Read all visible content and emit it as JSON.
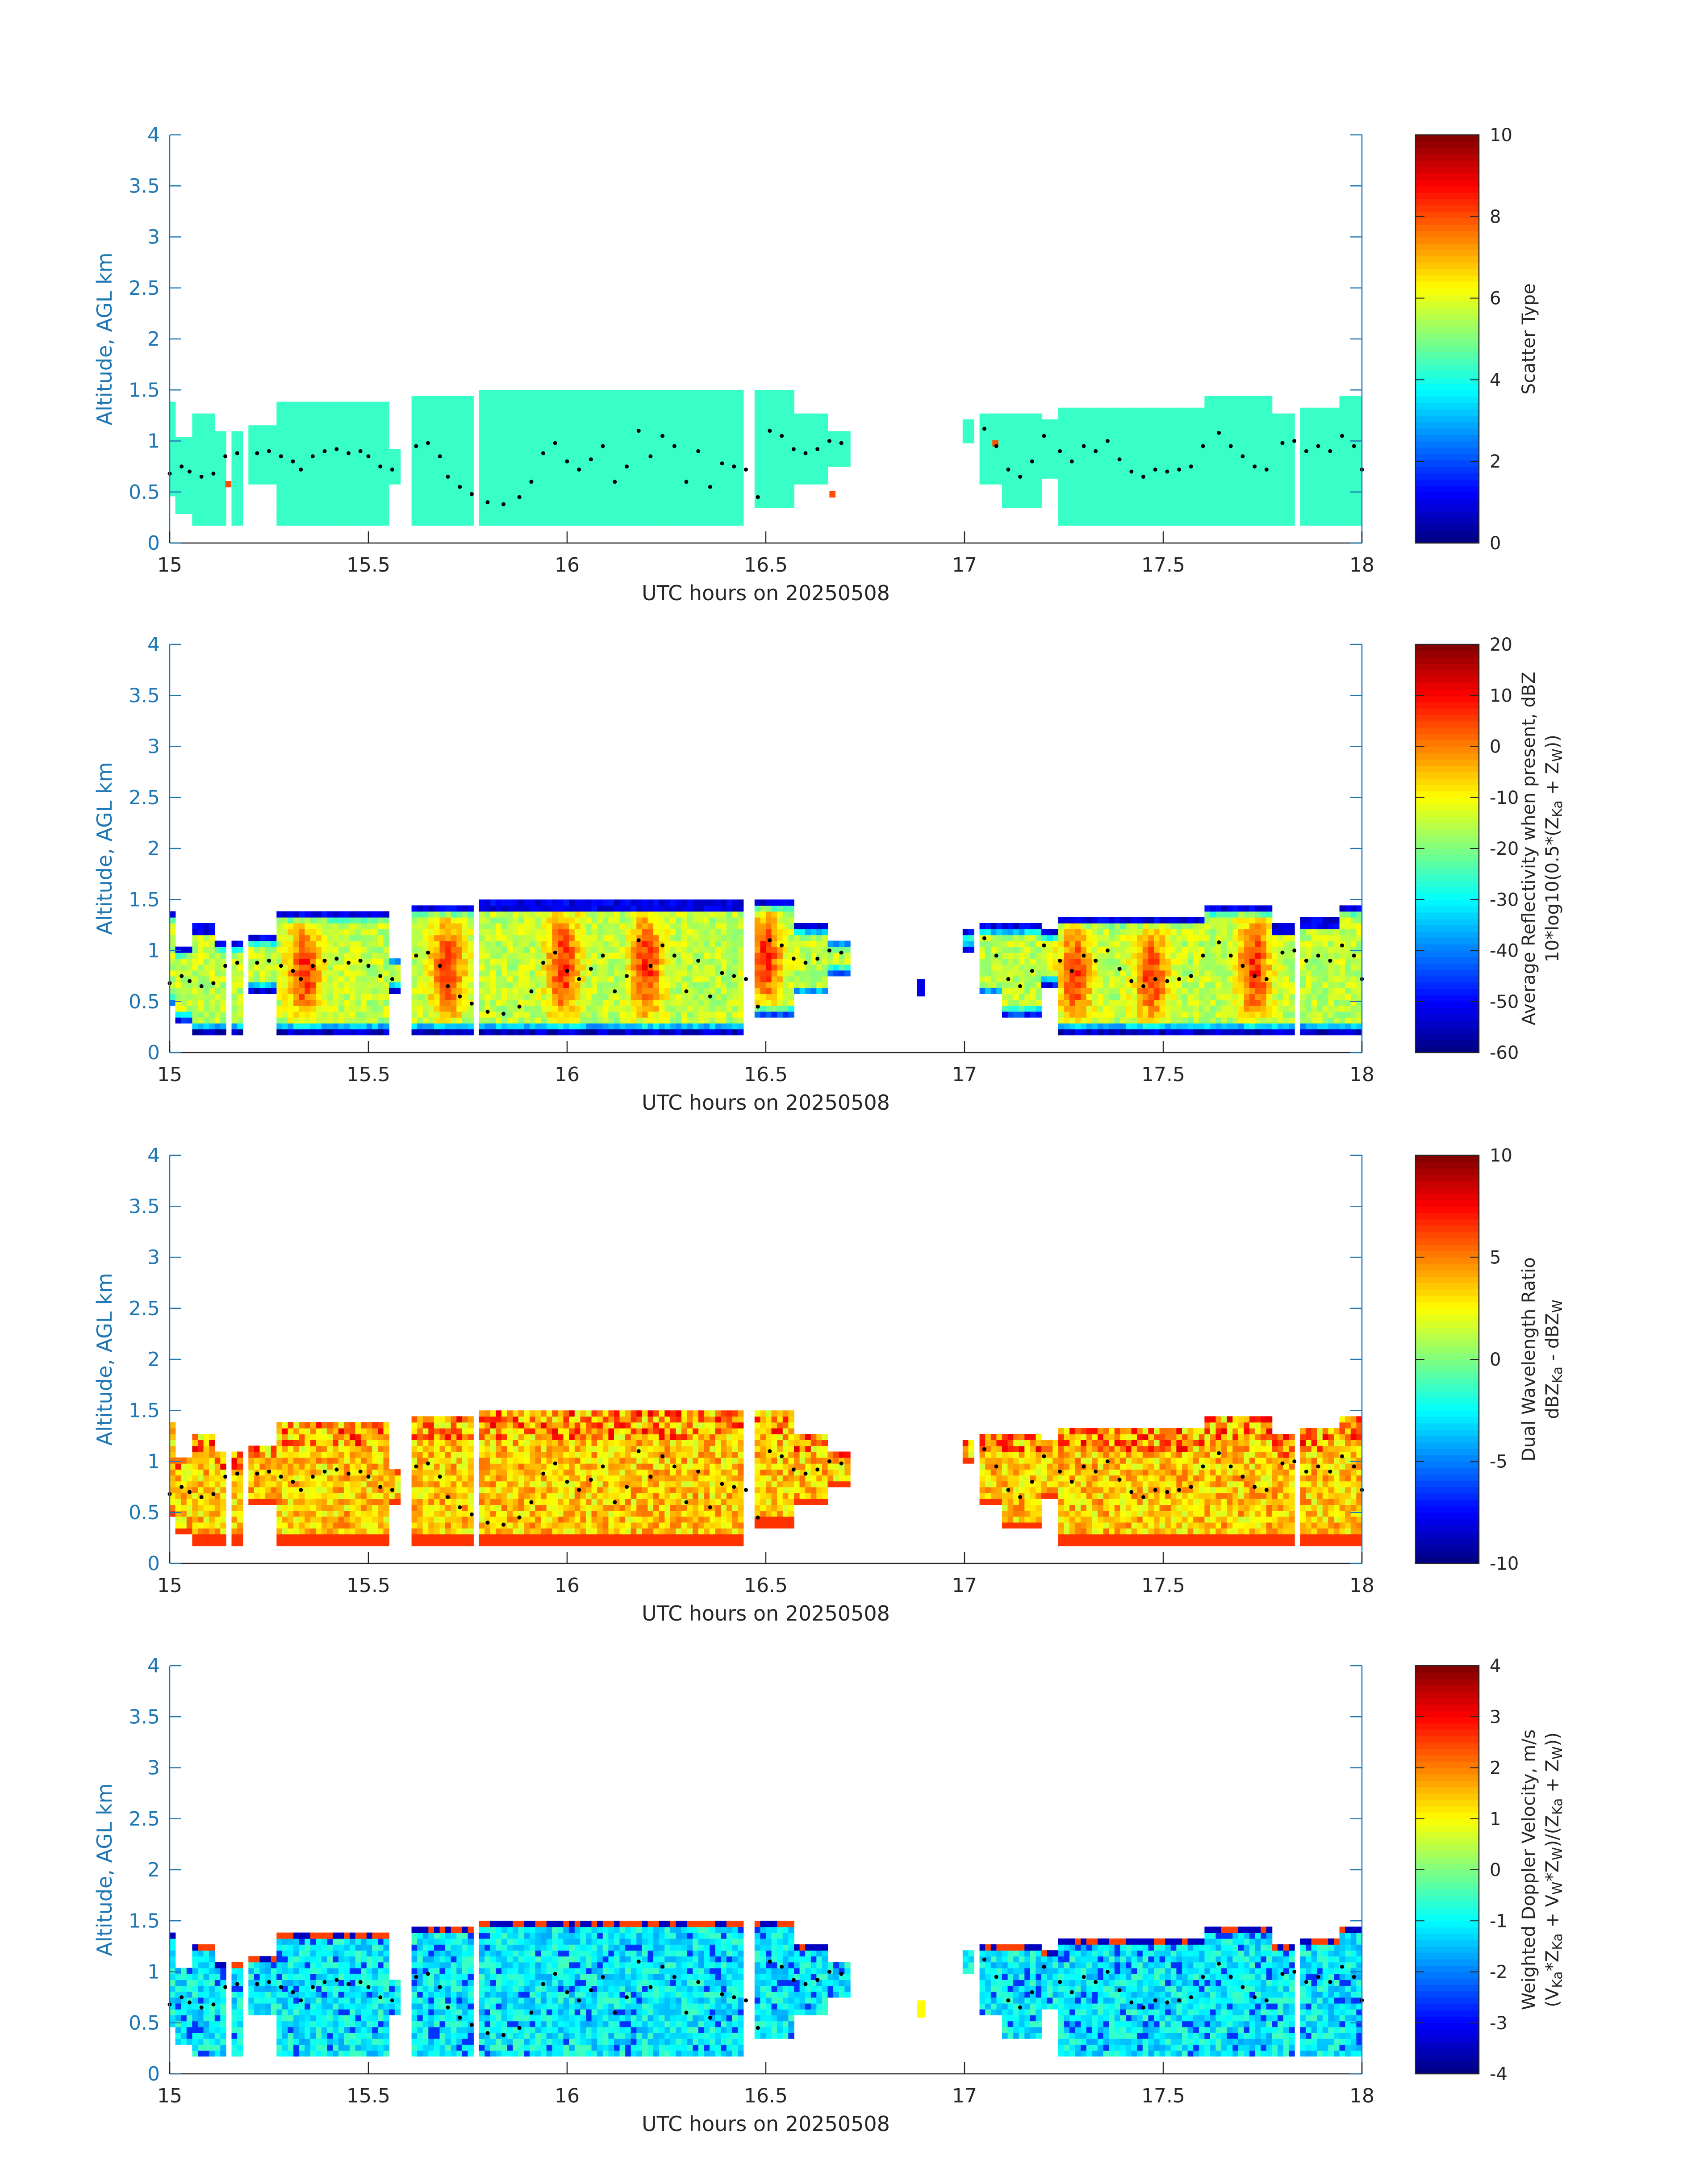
{
  "figure_title": "",
  "chart_data": [
    {
      "type": "heatmap",
      "name": "scatter-type",
      "xlabel": "UTC hours on 20250508",
      "ylabel": "Altitude, AGL km",
      "xlim": [
        15,
        18
      ],
      "ylim": [
        0,
        4
      ],
      "xticks": [
        "15",
        "15.5",
        "16",
        "16.5",
        "17",
        "17.5",
        "18"
      ],
      "yticks": [
        "0",
        "0.5",
        "1",
        "1.5",
        "2",
        "2.5",
        "3",
        "3.5",
        "4"
      ],
      "colorbar": {
        "label_lines": [
          "Scatter Type"
        ],
        "range": [
          0,
          10
        ],
        "ticks": [
          "0",
          "2",
          "4",
          "6",
          "8",
          "10"
        ],
        "colormap": "jet"
      },
      "field": {
        "kind": "scatter",
        "dominant_value": 4.3,
        "outlier_values": [
          8,
          8,
          8
        ],
        "outlier_times": [
          15.14,
          16.66,
          17.07
        ],
        "outlier_altitudes_km": [
          0.55,
          0.45,
          0.95
        ]
      },
      "grid": false
    },
    {
      "type": "heatmap",
      "name": "reflectivity",
      "xlabel": "UTC hours on 20250508",
      "ylabel": "Altitude, AGL km",
      "xlim": [
        15,
        18
      ],
      "ylim": [
        0,
        4
      ],
      "xticks": [
        "15",
        "15.5",
        "16",
        "16.5",
        "17",
        "17.5",
        "18"
      ],
      "yticks": [
        "0",
        "0.5",
        "1",
        "1.5",
        "2",
        "2.5",
        "3",
        "3.5",
        "4"
      ],
      "colorbar": {
        "label_lines": [
          "Average Reflectivity when present, dBZ",
          "10*log10(0.5*(Z",
          "Ka",
          " + Z",
          "W",
          "))"
        ],
        "range": [
          -60,
          20
        ],
        "ticks": [
          "-60",
          "-50",
          "-40",
          "-30",
          "-20",
          "-10",
          "0",
          "10",
          "20"
        ],
        "colormap": "jet"
      },
      "field": {
        "kind": "reflectivity",
        "edge_value_dBZ": -52,
        "core_value_dBZ": 5,
        "strong_cores_hours": [
          15.34,
          15.7,
          15.99,
          16.2,
          16.5,
          17.28,
          17.47,
          17.73
        ]
      },
      "grid": false
    },
    {
      "type": "heatmap",
      "name": "dwr",
      "xlabel": "UTC hours on 20250508",
      "ylabel": "Altitude, AGL km",
      "xlim": [
        15,
        18
      ],
      "ylim": [
        0,
        4
      ],
      "xticks": [
        "15",
        "15.5",
        "16",
        "16.5",
        "17",
        "17.5",
        "18"
      ],
      "yticks": [
        "0",
        "0.5",
        "1",
        "1.5",
        "2",
        "2.5",
        "3",
        "3.5",
        "4"
      ],
      "colorbar": {
        "label_lines": [
          "Dual Wavelength Ratio",
          "dBZ",
          "Ka",
          " - dBZ",
          "W"
        ],
        "range": [
          -10,
          10
        ],
        "ticks": [
          "-10",
          "-5",
          "0",
          "5",
          "10"
        ],
        "colormap": "jet"
      },
      "field": {
        "kind": "dwr",
        "typical_value_dB": 3.5,
        "top_value_dB": 7.5
      },
      "grid": false
    },
    {
      "type": "heatmap",
      "name": "doppler",
      "xlabel": "UTC hours on 20250508",
      "ylabel": "Altitude, AGL km",
      "xlim": [
        15,
        18
      ],
      "ylim": [
        0,
        4
      ],
      "xticks": [
        "15",
        "15.5",
        "16",
        "16.5",
        "17",
        "17.5",
        "18"
      ],
      "yticks": [
        "0",
        "0.5",
        "1",
        "1.5",
        "2",
        "2.5",
        "3",
        "3.5",
        "4"
      ],
      "colorbar": {
        "label_lines": [
          "Weighted Doppler Velocity, m/s",
          "(V",
          "Ka",
          "*Z",
          "Ka",
          " + V",
          "W",
          "*Z",
          "W",
          ")/(Z",
          "Ka",
          " + Z",
          "W",
          "))"
        ],
        "range": [
          -4,
          4
        ],
        "ticks": [
          "-4",
          "-3",
          "-2",
          "-1",
          "0",
          "1",
          "2",
          "3",
          "4"
        ],
        "colormap": "jet"
      },
      "field": {
        "kind": "doppler",
        "typical_value_ms": -1.0,
        "strong_down_ms": -2.6
      },
      "grid": false
    }
  ],
  "shared": {
    "cloud_columns": [
      {
        "t0": 15.0,
        "t1": 15.02,
        "bottom": 0.45,
        "top": 1.4
      },
      {
        "t0": 15.02,
        "t1": 15.05,
        "bottom": 0.3,
        "top": 1.05
      },
      {
        "t0": 15.05,
        "t1": 15.11,
        "bottom": 0.2,
        "top": 1.25
      },
      {
        "t0": 15.11,
        "t1": 15.14,
        "bottom": 0.2,
        "top": 1.1
      },
      {
        "t0": 15.15,
        "t1": 15.18,
        "bottom": 0.2,
        "top": 1.1
      },
      {
        "t0": 15.2,
        "t1": 15.27,
        "bottom": 0.6,
        "top": 1.15
      },
      {
        "t0": 15.27,
        "t1": 15.55,
        "bottom": 0.2,
        "top": 1.4
      },
      {
        "t0": 15.55,
        "t1": 15.58,
        "bottom": 0.6,
        "top": 0.95
      },
      {
        "t0": 15.61,
        "t1": 15.76,
        "bottom": 0.2,
        "top": 1.45
      },
      {
        "t0": 15.78,
        "t1": 16.44,
        "bottom": 0.2,
        "top": 1.5
      },
      {
        "t0": 16.47,
        "t1": 16.57,
        "bottom": 0.35,
        "top": 1.5
      },
      {
        "t0": 16.57,
        "t1": 16.65,
        "bottom": 0.55,
        "top": 1.25
      },
      {
        "t0": 16.65,
        "t1": 16.71,
        "bottom": 0.75,
        "top": 1.12
      },
      {
        "t0": 17.0,
        "t1": 17.03,
        "bottom": 1.0,
        "top": 1.2
      },
      {
        "t0": 17.04,
        "t1": 17.1,
        "bottom": 0.55,
        "top": 1.25
      },
      {
        "t0": 17.1,
        "t1": 17.2,
        "bottom": 0.35,
        "top": 1.25
      },
      {
        "t0": 17.2,
        "t1": 17.23,
        "bottom": 0.65,
        "top": 1.2
      },
      {
        "t0": 17.23,
        "t1": 17.6,
        "bottom": 0.2,
        "top": 1.35
      },
      {
        "t0": 17.61,
        "t1": 17.77,
        "bottom": 0.2,
        "top": 1.45
      },
      {
        "t0": 17.77,
        "t1": 17.83,
        "bottom": 0.2,
        "top": 1.25
      },
      {
        "t0": 17.84,
        "t1": 17.95,
        "bottom": 0.2,
        "top": 1.3
      },
      {
        "t0": 17.95,
        "t1": 18.0,
        "bottom": 0.2,
        "top": 1.45
      }
    ],
    "layer_marker_points": [
      [
        15.0,
        0.68
      ],
      [
        15.03,
        0.75
      ],
      [
        15.05,
        0.7
      ],
      [
        15.08,
        0.65
      ],
      [
        15.11,
        0.68
      ],
      [
        15.14,
        0.85
      ],
      [
        15.17,
        0.88
      ],
      [
        15.22,
        0.88
      ],
      [
        15.25,
        0.9
      ],
      [
        15.28,
        0.85
      ],
      [
        15.31,
        0.8
      ],
      [
        15.33,
        0.72
      ],
      [
        15.36,
        0.85
      ],
      [
        15.39,
        0.9
      ],
      [
        15.42,
        0.92
      ],
      [
        15.45,
        0.88
      ],
      [
        15.48,
        0.9
      ],
      [
        15.5,
        0.85
      ],
      [
        15.53,
        0.75
      ],
      [
        15.56,
        0.72
      ],
      [
        15.62,
        0.95
      ],
      [
        15.65,
        0.98
      ],
      [
        15.68,
        0.85
      ],
      [
        15.7,
        0.65
      ],
      [
        15.73,
        0.55
      ],
      [
        15.76,
        0.48
      ],
      [
        15.8,
        0.4
      ],
      [
        15.84,
        0.38
      ],
      [
        15.88,
        0.45
      ],
      [
        15.91,
        0.6
      ],
      [
        15.94,
        0.88
      ],
      [
        15.97,
        0.98
      ],
      [
        16.0,
        0.8
      ],
      [
        16.03,
        0.72
      ],
      [
        16.06,
        0.82
      ],
      [
        16.09,
        0.95
      ],
      [
        16.12,
        0.6
      ],
      [
        16.15,
        0.75
      ],
      [
        16.18,
        1.1
      ],
      [
        16.21,
        0.85
      ],
      [
        16.24,
        1.05
      ],
      [
        16.27,
        0.95
      ],
      [
        16.3,
        0.6
      ],
      [
        16.33,
        0.9
      ],
      [
        16.36,
        0.55
      ],
      [
        16.39,
        0.78
      ],
      [
        16.42,
        0.75
      ],
      [
        16.45,
        0.72
      ],
      [
        16.48,
        0.45
      ],
      [
        16.51,
        1.1
      ],
      [
        16.54,
        1.05
      ],
      [
        16.57,
        0.92
      ],
      [
        16.6,
        0.88
      ],
      [
        16.63,
        0.92
      ],
      [
        16.66,
        1.0
      ],
      [
        16.69,
        0.98
      ],
      [
        17.05,
        1.12
      ],
      [
        17.08,
        0.95
      ],
      [
        17.11,
        0.72
      ],
      [
        17.14,
        0.65
      ],
      [
        17.17,
        0.8
      ],
      [
        17.2,
        1.05
      ],
      [
        17.24,
        0.9
      ],
      [
        17.27,
        0.8
      ],
      [
        17.3,
        0.95
      ],
      [
        17.33,
        0.9
      ],
      [
        17.36,
        1.0
      ],
      [
        17.39,
        0.82
      ],
      [
        17.42,
        0.7
      ],
      [
        17.45,
        0.65
      ],
      [
        17.48,
        0.72
      ],
      [
        17.51,
        0.7
      ],
      [
        17.54,
        0.72
      ],
      [
        17.57,
        0.75
      ],
      [
        17.6,
        0.95
      ],
      [
        17.64,
        1.08
      ],
      [
        17.67,
        0.95
      ],
      [
        17.7,
        0.85
      ],
      [
        17.73,
        0.75
      ],
      [
        17.76,
        0.72
      ],
      [
        17.8,
        0.98
      ],
      [
        17.83,
        1.0
      ],
      [
        17.86,
        0.9
      ],
      [
        17.89,
        0.95
      ],
      [
        17.92,
        0.9
      ],
      [
        17.95,
        1.05
      ],
      [
        17.98,
        0.95
      ],
      [
        18.0,
        0.72
      ]
    ],
    "isolated_echo": {
      "t0": 16.88,
      "t1": 16.9,
      "bottom": 0.55,
      "top": 0.72,
      "panels": [
        "reflectivity",
        "doppler"
      ]
    }
  }
}
